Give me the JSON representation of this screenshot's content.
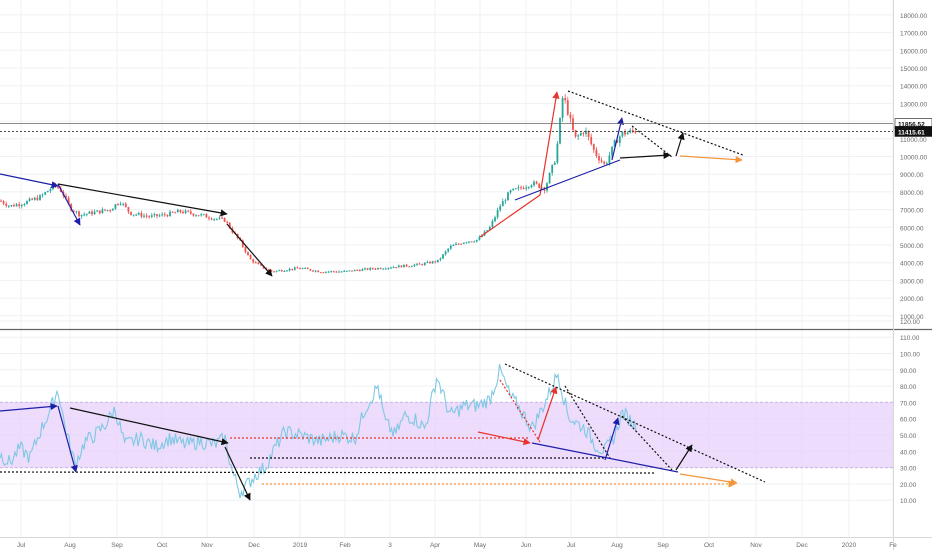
{
  "chart_data": [
    {
      "type": "line",
      "panel": "price",
      "ylim": [
        0,
        18000
      ],
      "y_ticks": [
        1000,
        2000,
        3000,
        4000,
        5000,
        6000,
        7000,
        8000,
        9000,
        10000,
        11000,
        12000,
        13000,
        14000,
        15000,
        16000,
        17000,
        18000
      ],
      "y_tick_labels": [
        "1000.00",
        "2000.00",
        "3000.00",
        "4000.00",
        "5000.00",
        "6000.00",
        "7000.00",
        "8000.00",
        "9000.00",
        "10000.00",
        "11000.00",
        "12000.00",
        "13000.00",
        "14000.00",
        "15000.00",
        "16000.00",
        "17000.00",
        "18000.00"
      ],
      "price_badges": [
        {
          "label": "11856.52",
          "value": 11856.52
        },
        {
          "label": "11415.61",
          "value": 11415.61
        }
      ],
      "series_knots": [
        [
          0,
          7500
        ],
        [
          10,
          7200
        ],
        [
          25,
          7400
        ],
        [
          40,
          7700
        ],
        [
          55,
          8400
        ],
        [
          62,
          8000
        ],
        [
          70,
          7100
        ],
        [
          80,
          6700
        ],
        [
          90,
          6800
        ],
        [
          100,
          6900
        ],
        [
          110,
          7000
        ],
        [
          120,
          7500
        ],
        [
          130,
          6800
        ],
        [
          150,
          6600
        ],
        [
          165,
          6700
        ],
        [
          180,
          6900
        ],
        [
          200,
          6700
        ],
        [
          215,
          6500
        ],
        [
          225,
          6400
        ],
        [
          232,
          5800
        ],
        [
          240,
          5200
        ],
        [
          250,
          4200
        ],
        [
          260,
          3800
        ],
        [
          272,
          3500
        ],
        [
          285,
          3600
        ],
        [
          300,
          3700
        ],
        [
          320,
          3500
        ],
        [
          345,
          3500
        ],
        [
          360,
          3600
        ],
        [
          380,
          3700
        ],
        [
          400,
          3800
        ],
        [
          420,
          3900
        ],
        [
          438,
          4100
        ],
        [
          450,
          4900
        ],
        [
          465,
          5200
        ],
        [
          478,
          5300
        ],
        [
          490,
          6000
        ],
        [
          500,
          7200
        ],
        [
          510,
          8000
        ],
        [
          520,
          8200
        ],
        [
          532,
          8500
        ],
        [
          545,
          8200
        ],
        [
          556,
          10000
        ],
        [
          563,
          13500
        ],
        [
          568,
          12500
        ],
        [
          575,
          11000
        ],
        [
          585,
          11500
        ],
        [
          595,
          10200
        ],
        [
          605,
          9500
        ],
        [
          615,
          10800
        ],
        [
          622,
          11300
        ],
        [
          632,
          11400
        ],
        [
          637,
          11500
        ]
      ]
    },
    {
      "type": "line",
      "panel": "rsi",
      "ylim": [
        0,
        120
      ],
      "y_ticks": [
        10,
        20,
        30,
        40,
        50,
        60,
        70,
        80,
        90,
        100,
        110,
        120
      ],
      "y_tick_labels": [
        "10.00",
        "20.00",
        "30.00",
        "40.00",
        "50.00",
        "60.00",
        "70.00",
        "80.00",
        "90.00",
        "100.00",
        "110.00",
        "120.00"
      ],
      "band": [
        30,
        70
      ],
      "series_knots": [
        [
          0,
          38
        ],
        [
          10,
          33
        ],
        [
          20,
          42
        ],
        [
          30,
          36
        ],
        [
          40,
          52
        ],
        [
          50,
          65
        ],
        [
          58,
          78
        ],
        [
          65,
          55
        ],
        [
          75,
          32
        ],
        [
          85,
          46
        ],
        [
          95,
          50
        ],
        [
          105,
          56
        ],
        [
          115,
          66
        ],
        [
          125,
          44
        ],
        [
          140,
          48
        ],
        [
          155,
          43
        ],
        [
          170,
          48
        ],
        [
          185,
          44
        ],
        [
          200,
          46
        ],
        [
          215,
          44
        ],
        [
          225,
          48
        ],
        [
          232,
          28
        ],
        [
          240,
          15
        ],
        [
          248,
          20
        ],
        [
          256,
          26
        ],
        [
          265,
          30
        ],
        [
          275,
          42
        ],
        [
          285,
          52
        ],
        [
          300,
          50
        ],
        [
          320,
          46
        ],
        [
          340,
          50
        ],
        [
          355,
          48
        ],
        [
          365,
          66
        ],
        [
          378,
          80
        ],
        [
          385,
          58
        ],
        [
          395,
          50
        ],
        [
          405,
          62
        ],
        [
          415,
          60
        ],
        [
          425,
          54
        ],
        [
          437,
          86
        ],
        [
          450,
          62
        ],
        [
          465,
          68
        ],
        [
          478,
          68
        ],
        [
          490,
          72
        ],
        [
          500,
          90
        ],
        [
          510,
          74
        ],
        [
          520,
          66
        ],
        [
          532,
          54
        ],
        [
          545,
          70
        ],
        [
          558,
          88
        ],
        [
          568,
          62
        ],
        [
          575,
          58
        ],
        [
          585,
          54
        ],
        [
          595,
          44
        ],
        [
          605,
          40
        ],
        [
          615,
          50
        ],
        [
          622,
          64
        ],
        [
          632,
          58
        ],
        [
          637,
          55
        ]
      ]
    }
  ],
  "x_axis": {
    "labels": [
      "Jul",
      "Aug",
      "Sep",
      "Oct",
      "Nov",
      "Dec",
      "2019",
      "Feb",
      "3",
      "Apr",
      "May",
      "Jun",
      "Jul",
      "Aug",
      "Sep",
      "Oct",
      "Nov",
      "Dec",
      "2020",
      "Fe"
    ]
  },
  "annotation_colors": {
    "red": "#e8322b",
    "blue": "#1e1ea8",
    "black": "#111111",
    "orange": "#f2963c",
    "candle_up": "#26a69a",
    "candle_down": "#ef5350",
    "rsi_line": "#7ec8e3",
    "rsi_band": "#e8d3fb"
  }
}
